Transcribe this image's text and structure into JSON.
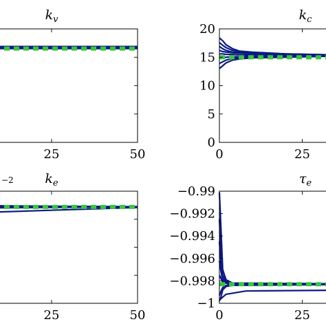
{
  "chart_data": [
    {
      "id": "kv",
      "type": "line",
      "title": {
        "main": "k",
        "sub": "v"
      },
      "xlim": [
        0,
        50
      ],
      "xticks": [
        25,
        50
      ],
      "yticks": [],
      "show_xticklabels": true,
      "series_color": "#0b1a85",
      "reference_color": "#38c63a",
      "traces": [
        {
          "x": [
            0,
            50
          ],
          "y": [
            0.0,
            0.0
          ]
        },
        {
          "x": [
            0,
            50
          ],
          "y": [
            0.004,
            0.004
          ]
        },
        {
          "x": [
            0,
            50
          ],
          "y": [
            -0.004,
            -0.004
          ]
        },
        {
          "x": [
            0,
            50
          ],
          "y": [
            0.007,
            0.007
          ]
        }
      ],
      "reference": {
        "x": [
          0,
          50
        ],
        "y": [
          -0.004,
          -0.004
        ]
      },
      "ylim": [
        -0.5,
        0.1
      ]
    },
    {
      "id": "kc",
      "type": "line",
      "title": {
        "main": "k",
        "sub": "c"
      },
      "xlim": [
        0,
        50
      ],
      "ylim": [
        0,
        20
      ],
      "xticks": [
        0,
        25
      ],
      "yticks": [
        0,
        5,
        10,
        15,
        20
      ],
      "show_xticklabels": true,
      "series_color": "#0b1a85",
      "reference_color": "#38c63a",
      "traces": [
        {
          "x": [
            0,
            1,
            2,
            4,
            6,
            10,
            20,
            35,
            50
          ],
          "y": [
            18.4,
            17.9,
            17.2,
            16.5,
            16.1,
            15.9,
            15.6,
            15.4,
            15.3
          ]
        },
        {
          "x": [
            0,
            1,
            2,
            4,
            6,
            10,
            20,
            35,
            50
          ],
          "y": [
            17.6,
            17.1,
            16.7,
            16.2,
            16.0,
            15.8,
            15.6,
            15.4,
            15.3
          ]
        },
        {
          "x": [
            0,
            1,
            2,
            4,
            6,
            10,
            20,
            35,
            50
          ],
          "y": [
            16.9,
            16.5,
            16.2,
            15.9,
            15.8,
            15.7,
            15.5,
            15.4,
            15.3
          ]
        },
        {
          "x": [
            0,
            1,
            2,
            4,
            6,
            10,
            20,
            35,
            50
          ],
          "y": [
            16.2,
            16.0,
            15.9,
            15.8,
            15.7,
            15.6,
            15.5,
            15.4,
            15.3
          ]
        },
        {
          "x": [
            0,
            1,
            2,
            4,
            6,
            10,
            20,
            35,
            50
          ],
          "y": [
            15.6,
            15.6,
            15.5,
            15.5,
            15.4,
            15.4,
            15.4,
            15.3,
            15.3
          ]
        },
        {
          "x": [
            0,
            1,
            2,
            4,
            6,
            10,
            20,
            35,
            50
          ],
          "y": [
            14.8,
            14.9,
            15.0,
            15.1,
            15.1,
            15.2,
            15.2,
            15.3,
            15.3
          ]
        },
        {
          "x": [
            0,
            1,
            2,
            4,
            6,
            10,
            20,
            35,
            50
          ],
          "y": [
            13.9,
            14.2,
            14.5,
            14.8,
            14.9,
            15.0,
            15.1,
            15.2,
            15.3
          ]
        },
        {
          "x": [
            0,
            1,
            2,
            4,
            6,
            10,
            20,
            35,
            50
          ],
          "y": [
            13.0,
            13.5,
            14.0,
            14.5,
            14.7,
            14.9,
            15.0,
            15.2,
            15.3
          ]
        }
      ],
      "reference": {
        "x": [
          0,
          50
        ],
        "y": [
          15,
          15
        ]
      }
    },
    {
      "id": "ke",
      "type": "line",
      "title": {
        "main": "k",
        "sub": "e"
      },
      "exponent_label": "−2",
      "xlim": [
        0,
        50
      ],
      "ylim": [
        0,
        1
      ],
      "xticks": [
        25,
        50
      ],
      "yticks": [],
      "show_xticklabels": true,
      "series_color": "#0b1a85",
      "reference_color": "#38c63a",
      "traces": [
        {
          "x": [
            0,
            10,
            25,
            40,
            50
          ],
          "y": [
            0.86,
            0.86,
            0.86,
            0.86,
            0.86
          ]
        },
        {
          "x": [
            0,
            10,
            25,
            40,
            50
          ],
          "y": [
            0.87,
            0.87,
            0.866,
            0.864,
            0.862
          ]
        },
        {
          "x": [
            0,
            10,
            25,
            40,
            50
          ],
          "y": [
            0.85,
            0.852,
            0.855,
            0.858,
            0.86
          ]
        },
        {
          "x": [
            0,
            10,
            25,
            40,
            50
          ],
          "y": [
            0.8,
            0.815,
            0.83,
            0.845,
            0.855
          ]
        }
      ],
      "reference": {
        "x": [
          0,
          50
        ],
        "y": [
          0.86,
          0.86
        ]
      }
    },
    {
      "id": "taue",
      "type": "line",
      "title": {
        "main": "τ",
        "sub": "e"
      },
      "xlim": [
        0,
        50
      ],
      "ylim": [
        -1,
        -0.99
      ],
      "xticks": [
        0,
        25
      ],
      "yticks": [
        -1,
        -0.998,
        -0.996,
        -0.994,
        -0.992,
        -0.99
      ],
      "ytick_labels": [
        "−1",
        "−0.998",
        "−0.996",
        "−0.994",
        "−0.992",
        "−0.99"
      ],
      "show_xticklabels": true,
      "series_color": "#0b1a85",
      "reference_color": "#38c63a",
      "traces": [
        {
          "x": [
            0,
            0.5,
            1,
            2,
            4,
            50
          ],
          "y": [
            -0.9901,
            -0.9935,
            -0.997,
            -0.9979,
            -0.9982,
            -0.9983
          ]
        },
        {
          "x": [
            0,
            0.5,
            1,
            2,
            4,
            50
          ],
          "y": [
            -0.9925,
            -0.9955,
            -0.9975,
            -0.998,
            -0.9982,
            -0.9983
          ]
        },
        {
          "x": [
            0,
            0.5,
            1,
            2,
            4,
            50
          ],
          "y": [
            -0.9945,
            -0.9965,
            -0.9978,
            -0.9981,
            -0.9983,
            -0.9983
          ]
        },
        {
          "x": [
            0,
            0.5,
            1,
            2,
            4,
            50
          ],
          "y": [
            -0.9962,
            -0.9972,
            -0.998,
            -0.9982,
            -0.9983,
            -0.9983
          ]
        },
        {
          "x": [
            0,
            0.5,
            1,
            2,
            4,
            50
          ],
          "y": [
            -0.9975,
            -0.9978,
            -0.9981,
            -0.9982,
            -0.9983,
            -0.9983
          ]
        },
        {
          "x": [
            0,
            0.5,
            1,
            2,
            4,
            50
          ],
          "y": [
            -0.9993,
            -0.9989,
            -0.9986,
            -0.9984,
            -0.9983,
            -0.9983
          ]
        },
        {
          "x": [
            0,
            0.5,
            1,
            2,
            4,
            50
          ],
          "y": [
            -0.9998,
            -0.9994,
            -0.9988,
            -0.9985,
            -0.9984,
            -0.9983
          ]
        },
        {
          "x": [
            0,
            2,
            8,
            50
          ],
          "y": [
            -0.9997,
            -0.9992,
            -0.9989,
            -0.9988
          ]
        }
      ],
      "reference": {
        "x": [
          0,
          50
        ],
        "y": [
          -0.9983,
          -0.9983
        ]
      }
    }
  ]
}
